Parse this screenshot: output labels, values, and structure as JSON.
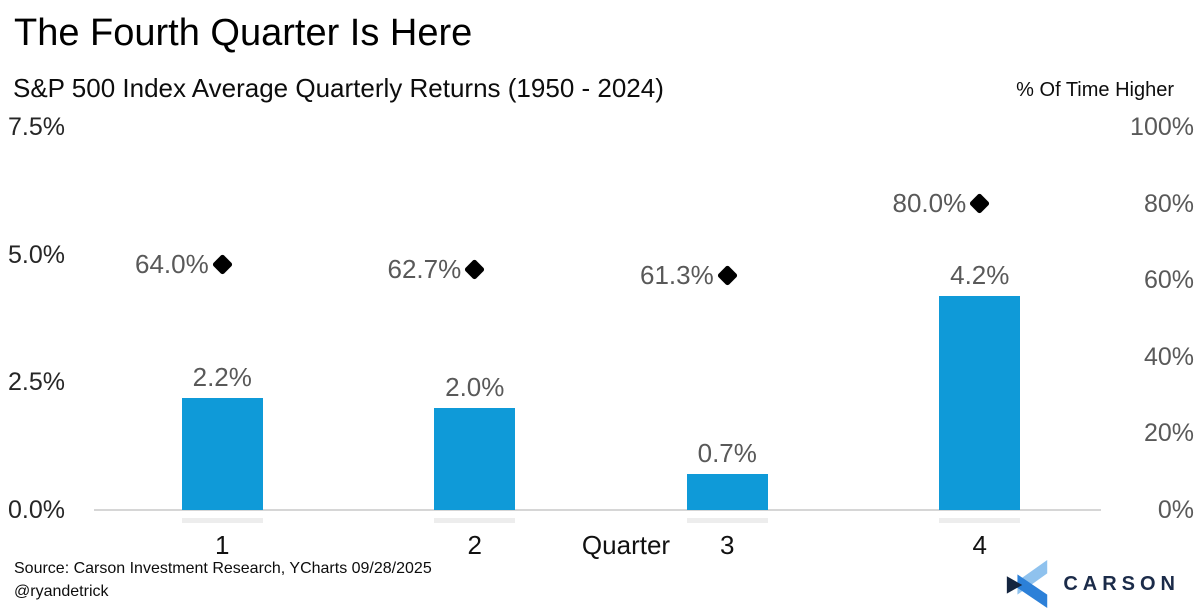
{
  "header": {
    "title": "The Fourth Quarter Is Here",
    "subtitle": "S&P 500 Index Average Quarterly Returns (1950 - 2024)",
    "right_axis_title": "% Of Time Higher"
  },
  "chart_data": {
    "type": "bar",
    "categories": [
      "1",
      "2",
      "3",
      "4"
    ],
    "xlabel": "Quarter",
    "series": [
      {
        "name": "Average Quarterly Return",
        "type": "bar",
        "axis": "left",
        "values": [
          2.2,
          2.0,
          0.7,
          4.2
        ],
        "labels": [
          "2.2%",
          "2.0%",
          "0.7%",
          "4.2%"
        ],
        "color": "#0f9ad8"
      },
      {
        "name": "% Of Time Higher",
        "type": "scatter",
        "marker": "diamond",
        "axis": "right",
        "values": [
          64.0,
          62.7,
          61.3,
          80.0
        ],
        "labels": [
          "64.0%",
          "62.7%",
          "61.3%",
          "80.0%"
        ],
        "color": "#000000"
      }
    ],
    "left_axis": {
      "ticks": [
        "0.0%",
        "2.5%",
        "5.0%",
        "7.5%"
      ],
      "values": [
        0,
        2.5,
        5,
        7.5
      ],
      "min": 0,
      "max": 7.5
    },
    "right_axis": {
      "ticks": [
        "0%",
        "20%",
        "40%",
        "60%",
        "80%",
        "100%"
      ],
      "values": [
        0,
        20,
        40,
        60,
        80,
        100
      ],
      "min": 0,
      "max": 100
    },
    "grid": false,
    "legend": "none"
  },
  "footer": {
    "source_line1": "Source: Carson Investment Research, YCharts 09/28/2025",
    "source_line2": "@ryandetrick",
    "logo_text": "CARSON"
  },
  "colors": {
    "bar": "#0f9ad8",
    "marker": "#000000",
    "axis_line": "#d6d6d6",
    "value_label": "#595959",
    "logo_navy": "#1b2b49",
    "logo_light_blue": "#8fc2ee",
    "logo_mid_blue": "#2c80d8",
    "logo_dark_navy": "#14253f"
  }
}
